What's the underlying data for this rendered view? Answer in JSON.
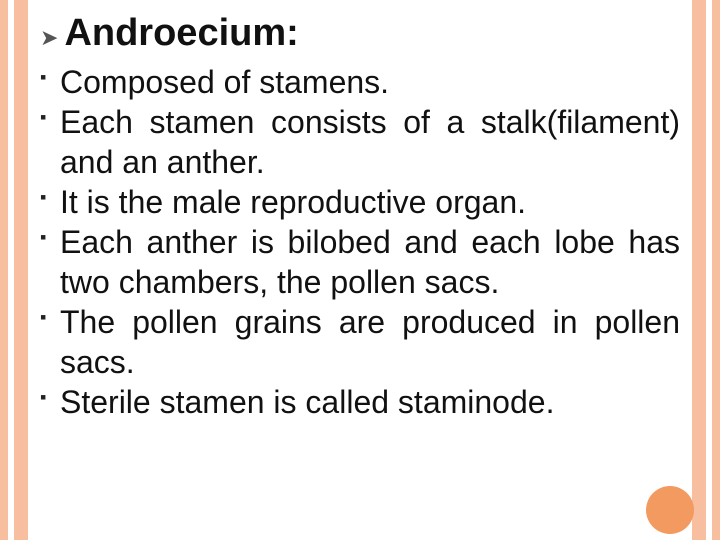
{
  "theme": {
    "stripe_color": "#f7bfa0",
    "circle_color": "#f29a5f",
    "title_color": "#111111",
    "text_color": "#111111",
    "background": "#ffffff"
  },
  "title": {
    "text": "Androecium:"
  },
  "bullets": [
    {
      "text": "Composed of stamens."
    },
    {
      "text": "Each stamen consists of a stalk(filament) and an anther."
    },
    {
      "text": "It is the male reproductive organ."
    },
    {
      "text": "Each anther is bilobed and each lobe has two chambers, the pollen sacs."
    },
    {
      "text": "The pollen grains are produced in pollen sacs."
    },
    {
      "text": "Sterile stamen is called staminode."
    }
  ]
}
